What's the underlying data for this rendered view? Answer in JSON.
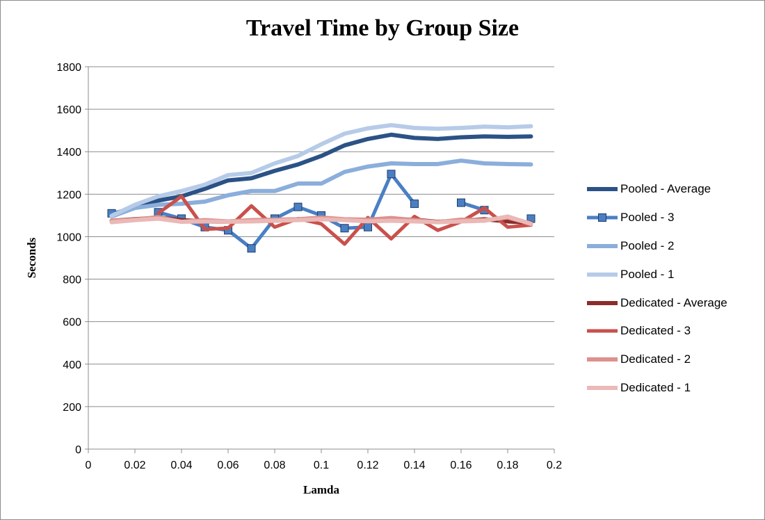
{
  "chart_data": {
    "type": "line",
    "title": "Travel Time by Group Size",
    "xlabel": "Lamda",
    "ylabel": "Seconds",
    "xlim": [
      0,
      0.2
    ],
    "ylim": [
      0,
      1800
    ],
    "x_ticks": [
      "0",
      "0.02",
      "0.04",
      "0.06",
      "0.08",
      "0.1",
      "0.12",
      "0.14",
      "0.16",
      "0.18",
      "0.2"
    ],
    "y_ticks": [
      "0",
      "200",
      "400",
      "600",
      "800",
      "1000",
      "1200",
      "1400",
      "1600",
      "1800"
    ],
    "grid": "horizontal",
    "legend_position": "right",
    "x": [
      0.01,
      0.02,
      0.03,
      0.04,
      0.05,
      0.06,
      0.07,
      0.08,
      0.09,
      0.1,
      0.11,
      0.12,
      0.13,
      0.14,
      0.15,
      0.16,
      0.17,
      0.18,
      0.19
    ],
    "series": [
      {
        "name": "Pooled - Average",
        "color": "#2b5286",
        "width": 6,
        "marker": false,
        "values": [
          1105,
          1140,
          1170,
          1190,
          1225,
          1265,
          1275,
          1310,
          1340,
          1380,
          1430,
          1460,
          1480,
          1465,
          1460,
          1468,
          1472,
          1470,
          1472
        ]
      },
      {
        "name": "Pooled - 3",
        "color": "#4a7fc4",
        "width": 5,
        "marker": true,
        "values": [
          1110,
          null,
          1115,
          1085,
          1045,
          1030,
          945,
          1085,
          1140,
          1100,
          1040,
          1045,
          1295,
          1155,
          null,
          1160,
          1125,
          null,
          1085
        ]
      },
      {
        "name": "Pooled - 2",
        "color": "#8baedb",
        "width": 6,
        "marker": false,
        "values": [
          1095,
          1135,
          1150,
          1155,
          1165,
          1195,
          1215,
          1215,
          1250,
          1250,
          1305,
          1330,
          1345,
          1342,
          1342,
          1358,
          1345,
          1342,
          1340
        ]
      },
      {
        "name": "Pooled - 1",
        "color": "#b6cbe8",
        "width": 6,
        "marker": false,
        "values": [
          1098,
          1150,
          1190,
          1215,
          1245,
          1290,
          1300,
          1345,
          1380,
          1435,
          1485,
          1510,
          1525,
          1512,
          1508,
          1512,
          1518,
          1515,
          1520
        ]
      },
      {
        "name": "Dedicated - Average",
        "color": "#8b2d2b",
        "width": 6,
        "marker": false,
        "values": [
          1075,
          1082,
          1090,
          1078,
          1072,
          1070,
          1075,
          1078,
          1080,
          1085,
          1080,
          1078,
          1082,
          1080,
          1070,
          1075,
          1082,
          1072,
          1065
        ]
      },
      {
        "name": "Dedicated - 3",
        "color": "#c9504b",
        "width": 5,
        "marker": false,
        "values": [
          null,
          null,
          1110,
          1190,
          1035,
          1040,
          1145,
          1045,
          1085,
          1060,
          965,
          1090,
          990,
          1095,
          1030,
          1070,
          1135,
          1045,
          1055
        ]
      },
      {
        "name": "Dedicated - 2",
        "color": "#dd908d",
        "width": 6,
        "marker": false,
        "values": [
          1075,
          1080,
          1092,
          1070,
          1078,
          1072,
          1078,
          1080,
          1082,
          1090,
          1082,
          1080,
          1088,
          1078,
          1068,
          1080,
          1078,
          1090,
          1062
        ]
      },
      {
        "name": "Dedicated - 1",
        "color": "#eab9b7",
        "width": 6,
        "marker": false,
        "values": [
          1068,
          1078,
          1085,
          1070,
          1072,
          1070,
          1072,
          1075,
          1078,
          1082,
          1078,
          1072,
          1075,
          1072,
          1068,
          1072,
          1075,
          1095,
          1060
        ]
      }
    ]
  }
}
